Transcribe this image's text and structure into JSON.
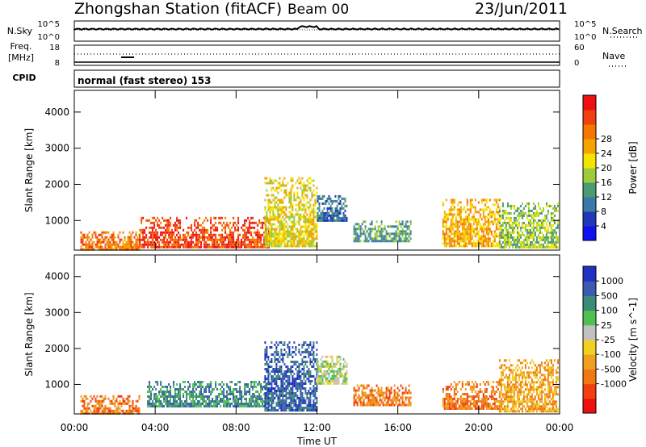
{
  "header": {
    "station": "Zhongshan Station (fitACF)",
    "beam": "Beam 00",
    "date": "23/Jun/2011"
  },
  "top_panels": {
    "nsky": {
      "label": "N.Sky",
      "ticks": [
        "10^5",
        "10^0"
      ]
    },
    "nsearch": {
      "label": "N.Search",
      "ticks": [
        "10^5",
        "10^0"
      ]
    },
    "freq": {
      "label_line1": "Freq.",
      "label_line2": "[MHz]",
      "ticks": [
        "18",
        "8"
      ]
    },
    "nave": {
      "label": "Nave",
      "ticks": [
        "60",
        "0"
      ]
    },
    "cpid": {
      "label": "CPID",
      "mode": "normal (fast stereo) 153"
    }
  },
  "chart_data": [
    {
      "type": "heatmap",
      "name": "power",
      "xlabel": "Time UT",
      "ylabel": "Slant Range [km]",
      "xlim_hours": [
        0,
        24
      ],
      "ylim_km": [
        180,
        4600
      ],
      "x_ticks": [
        "00:00",
        "04:00",
        "08:00",
        "12:00",
        "16:00",
        "20:00",
        "00:00"
      ],
      "y_ticks": [
        1000,
        2000,
        3000,
        4000
      ],
      "colorbar": {
        "label": "Power [dB]",
        "ticks": [
          "4",
          "8",
          "12",
          "16",
          "20",
          "24",
          "28"
        ],
        "colors": [
          "#1010f0",
          "#2038b8",
          "#3c78a8",
          "#4a9a72",
          "#9ccc3c",
          "#f4e400",
          "#f4a400",
          "#f47800",
          "#f04010",
          "#ee1010"
        ]
      },
      "regions": [
        {
          "t0": 0.3,
          "t1": 3.2,
          "r0": 200,
          "r1": 700,
          "level": 7
        },
        {
          "t0": 3.2,
          "t1": 9.6,
          "r0": 250,
          "r1": 1100,
          "level": 8
        },
        {
          "t0": 9.4,
          "t1": 12.0,
          "r0": 300,
          "r1": 2200,
          "level": 5
        },
        {
          "t0": 12.0,
          "t1": 13.5,
          "r0": 1000,
          "r1": 1700,
          "level": 2
        },
        {
          "t0": 13.8,
          "t1": 16.6,
          "r0": 400,
          "r1": 1000,
          "level": 3
        },
        {
          "t0": 18.2,
          "t1": 21.0,
          "r0": 300,
          "r1": 1600,
          "level": 6
        },
        {
          "t0": 21.0,
          "t1": 23.9,
          "r0": 250,
          "r1": 1500,
          "level": 4
        }
      ]
    },
    {
      "type": "heatmap",
      "name": "velocity",
      "xlabel": "Time UT",
      "ylabel": "Slant Range [km]",
      "xlim_hours": [
        0,
        24
      ],
      "ylim_km": [
        180,
        4600
      ],
      "x_ticks": [
        "00:00",
        "04:00",
        "08:00",
        "12:00",
        "16:00",
        "20:00",
        "00:00"
      ],
      "y_ticks": [
        1000,
        2000,
        3000,
        4000
      ],
      "colorbar": {
        "label": "Velocity [m s^-1]",
        "ticks": [
          "1000",
          "500",
          "100",
          "25",
          "-25",
          "-100",
          "-500",
          "-1000"
        ],
        "colors": [
          "#2030c0",
          "#3a5ab0",
          "#3c8a78",
          "#50c050",
          "#c0c0c0",
          "#f0d020",
          "#f0a020",
          "#f07810",
          "#f04010",
          "#ee1010"
        ]
      },
      "regions": [
        {
          "t0": 0.3,
          "t1": 3.2,
          "r0": 200,
          "r1": 700,
          "level": 7
        },
        {
          "t0": 3.6,
          "t1": 9.6,
          "r0": 400,
          "r1": 1100,
          "level": 2
        },
        {
          "t0": 9.4,
          "t1": 12.0,
          "r0": 300,
          "r1": 2200,
          "level": 1
        },
        {
          "t0": 12.0,
          "t1": 13.5,
          "r0": 1000,
          "r1": 1800,
          "level": 4
        },
        {
          "t0": 13.8,
          "t1": 16.6,
          "r0": 400,
          "r1": 1000,
          "level": 7
        },
        {
          "t0": 18.2,
          "t1": 21.0,
          "r0": 300,
          "r1": 1100,
          "level": 7
        },
        {
          "t0": 21.0,
          "t1": 23.9,
          "r0": 250,
          "r1": 1700,
          "level": 6
        }
      ]
    }
  ]
}
